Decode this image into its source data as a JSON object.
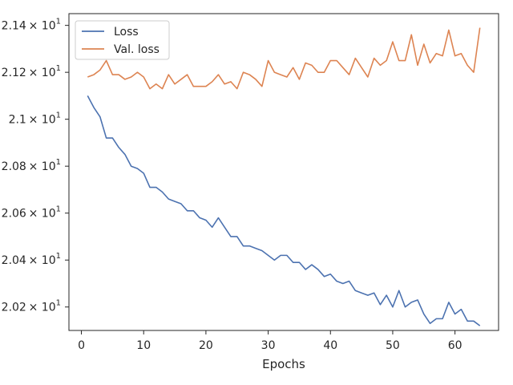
{
  "chart_data": {
    "type": "line",
    "xlabel": "Epochs",
    "ylabel": "",
    "xlim": [
      -2,
      67
    ],
    "ylim": [
      20.1,
      21.45
    ],
    "x_ticks": [
      {
        "value": 0,
        "label": "0"
      },
      {
        "value": 10,
        "label": "10"
      },
      {
        "value": 20,
        "label": "20"
      },
      {
        "value": 30,
        "label": "30"
      },
      {
        "value": 40,
        "label": "40"
      },
      {
        "value": 50,
        "label": "50"
      },
      {
        "value": 60,
        "label": "60"
      }
    ],
    "y_ticks": [
      {
        "value": 20.2,
        "base": "2.02",
        "exp": "1"
      },
      {
        "value": 20.4,
        "base": "2.04",
        "exp": "1"
      },
      {
        "value": 20.6,
        "base": "2.06",
        "exp": "1"
      },
      {
        "value": 20.8,
        "base": "2.08",
        "exp": "1"
      },
      {
        "value": 21.0,
        "base": "2.1",
        "exp": "1"
      },
      {
        "value": 21.2,
        "base": "2.12",
        "exp": "1"
      },
      {
        "value": 21.4,
        "base": "2.14",
        "exp": "1"
      }
    ],
    "y_tick_times": "× 10",
    "grid": false,
    "legend_position": "top-left",
    "series": [
      {
        "name": "Loss",
        "color": "#4c72b0",
        "x": [
          1,
          2,
          3,
          4,
          5,
          6,
          7,
          8,
          9,
          10,
          11,
          12,
          13,
          14,
          15,
          16,
          17,
          18,
          19,
          20,
          21,
          22,
          23,
          24,
          25,
          26,
          27,
          28,
          29,
          30,
          31,
          32,
          33,
          34,
          35,
          36,
          37,
          38,
          39,
          40,
          41,
          42,
          43,
          44,
          45,
          46,
          47,
          48,
          49,
          50,
          51,
          52,
          53,
          54,
          55,
          56,
          57,
          58,
          59,
          60,
          61,
          62,
          63,
          64
        ],
        "values": [
          21.1,
          21.05,
          21.01,
          20.92,
          20.92,
          20.88,
          20.85,
          20.8,
          20.79,
          20.77,
          20.71,
          20.71,
          20.69,
          20.66,
          20.65,
          20.64,
          20.61,
          20.61,
          20.58,
          20.57,
          20.54,
          20.58,
          20.54,
          20.5,
          20.5,
          20.46,
          20.46,
          20.45,
          20.44,
          20.42,
          20.4,
          20.42,
          20.42,
          20.39,
          20.39,
          20.36,
          20.38,
          20.36,
          20.33,
          20.34,
          20.31,
          20.3,
          20.31,
          20.27,
          20.26,
          20.25,
          20.26,
          20.21,
          20.25,
          20.2,
          20.27,
          20.2,
          20.22,
          20.23,
          20.17,
          20.13,
          20.15,
          20.15,
          20.22,
          20.17,
          20.19,
          20.14,
          20.14,
          20.12
        ]
      },
      {
        "name": "Val. loss",
        "color": "#dd8452",
        "x": [
          1,
          2,
          3,
          4,
          5,
          6,
          7,
          8,
          9,
          10,
          11,
          12,
          13,
          14,
          15,
          16,
          17,
          18,
          19,
          20,
          21,
          22,
          23,
          24,
          25,
          26,
          27,
          28,
          29,
          30,
          31,
          32,
          33,
          34,
          35,
          36,
          37,
          38,
          39,
          40,
          41,
          42,
          43,
          44,
          45,
          46,
          47,
          48,
          49,
          50,
          51,
          52,
          53,
          54,
          55,
          56,
          57,
          58,
          59,
          60,
          61,
          62,
          63,
          64
        ],
        "values": [
          21.18,
          21.19,
          21.21,
          21.25,
          21.19,
          21.19,
          21.17,
          21.18,
          21.2,
          21.18,
          21.13,
          21.15,
          21.13,
          21.19,
          21.15,
          21.17,
          21.19,
          21.14,
          21.14,
          21.14,
          21.16,
          21.19,
          21.15,
          21.16,
          21.13,
          21.2,
          21.19,
          21.17,
          21.14,
          21.25,
          21.2,
          21.19,
          21.18,
          21.22,
          21.17,
          21.24,
          21.23,
          21.2,
          21.2,
          21.25,
          21.25,
          21.22,
          21.19,
          21.26,
          21.22,
          21.18,
          21.26,
          21.23,
          21.25,
          21.33,
          21.25,
          21.25,
          21.36,
          21.23,
          21.32,
          21.24,
          21.28,
          21.27,
          21.38,
          21.27,
          21.28,
          21.23,
          21.2,
          21.39
        ]
      }
    ]
  }
}
